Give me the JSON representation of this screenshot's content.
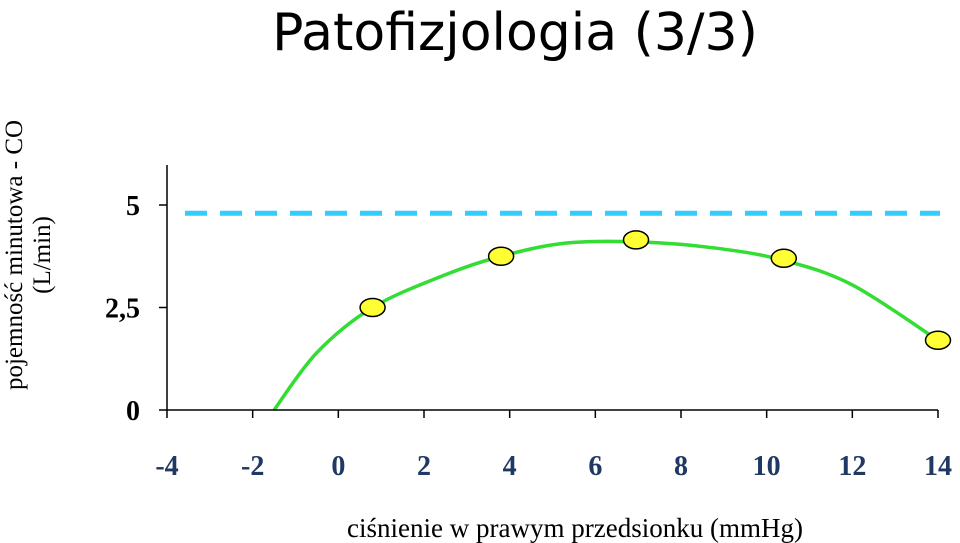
{
  "chart_data": {
    "type": "line",
    "title": "Patofizjologia (3/3)",
    "xlabel": "ciśnienie w prawym przedsionku (mmHg)",
    "ylabel": [
      "pojemność minutowa - CO",
      "(L/min)"
    ],
    "xlim": [
      -4,
      14
    ],
    "ylim": [
      0,
      6
    ],
    "x_ticks": [
      -4,
      -2,
      0,
      2,
      4,
      6,
      8,
      10,
      12,
      14
    ],
    "y_ticks": [
      {
        "value": 0,
        "label": "0"
      },
      {
        "value": 2.5,
        "label": "2,5"
      },
      {
        "value": 5,
        "label": "5"
      }
    ],
    "reference_line": {
      "y": 4.8,
      "style": "dashed",
      "color": "#33ccff"
    },
    "curve": {
      "color": "#33dd33",
      "points": [
        {
          "x": -1.5,
          "y": 0
        },
        {
          "x": -0.5,
          "y": 1.4
        },
        {
          "x": 0.8,
          "y": 2.5
        },
        {
          "x": 2.5,
          "y": 3.3
        },
        {
          "x": 3.8,
          "y": 3.75
        },
        {
          "x": 5.3,
          "y": 4.07
        },
        {
          "x": 7.0,
          "y": 4.1
        },
        {
          "x": 8.8,
          "y": 3.95
        },
        {
          "x": 10.4,
          "y": 3.65
        },
        {
          "x": 12.0,
          "y": 3.05
        },
        {
          "x": 14.0,
          "y": 1.7
        }
      ]
    },
    "markers": {
      "color": "#ffff33",
      "points": [
        {
          "x": 0.8,
          "y": 2.5
        },
        {
          "x": 3.8,
          "y": 3.75
        },
        {
          "x": 6.95,
          "y": 4.15
        },
        {
          "x": 10.4,
          "y": 3.7
        },
        {
          "x": 14.0,
          "y": 1.7
        }
      ]
    }
  }
}
